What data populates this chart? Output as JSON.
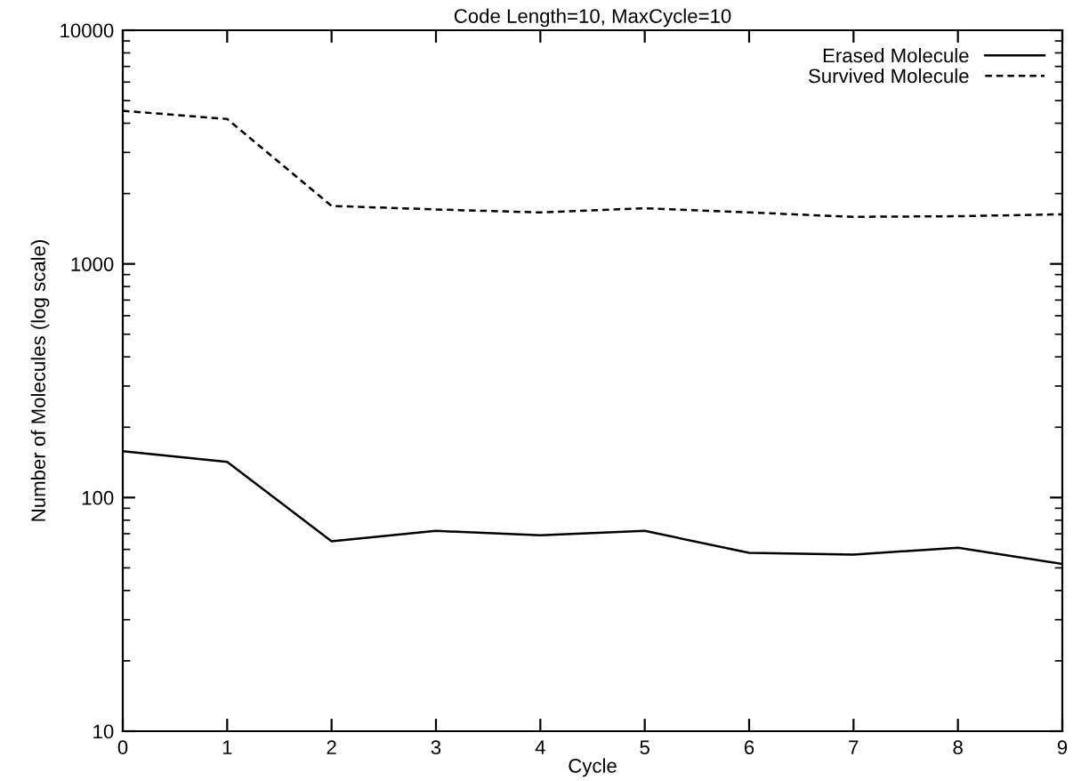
{
  "chart_data": {
    "type": "line",
    "title": "Code Length=10, MaxCycle=10",
    "xlabel": "Cycle",
    "ylabel": "Number of Molecules (log scale)",
    "x": [
      0,
      1,
      2,
      3,
      4,
      5,
      6,
      7,
      8,
      9
    ],
    "series": [
      {
        "name": "Erased Molecule",
        "color": "#000000",
        "line_style": "solid",
        "values": [
          158,
          142,
          65,
          72,
          69,
          72,
          58,
          57,
          61,
          52
        ]
      },
      {
        "name": "Survived Molecule",
        "color": "#000000",
        "line_style": "dashed",
        "values": [
          4520,
          4170,
          1770,
          1710,
          1660,
          1730,
          1660,
          1590,
          1600,
          1630
        ]
      }
    ],
    "log": "y",
    "xlim": [
      0,
      9
    ],
    "ylim": [
      10,
      10000
    ],
    "xticks": [
      0,
      1,
      2,
      3,
      4,
      5,
      6,
      7,
      8,
      9
    ],
    "yticks": [
      10,
      100,
      1000,
      10000
    ],
    "grid": false,
    "legend": "top right",
    "marker": "none"
  }
}
